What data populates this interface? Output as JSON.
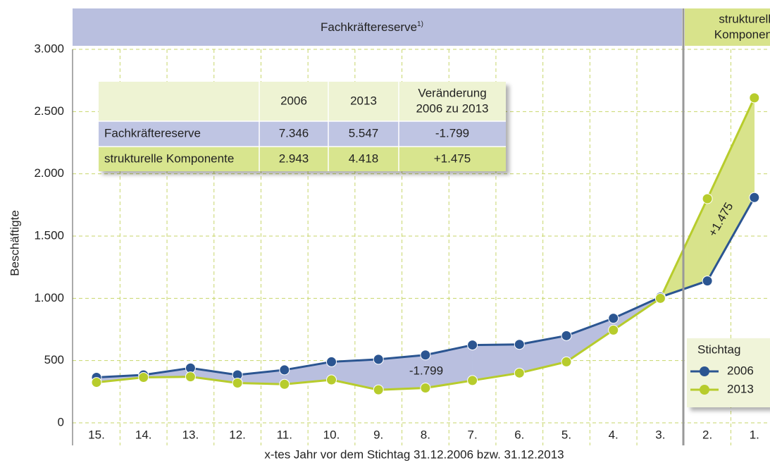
{
  "chart_data": {
    "type": "line",
    "header": {
      "left": "Fachkräftereserve",
      "left_note": "1)",
      "right": [
        "strukturelle",
        "Komponente"
      ]
    },
    "categories": [
      "15.",
      "14.",
      "13.",
      "12.",
      "11.",
      "10.",
      "9.",
      "8.",
      "7.",
      "6.",
      "5.",
      "4.",
      "3.",
      "2.",
      "1."
    ],
    "series": [
      {
        "name": "2006",
        "color": "#2b5591",
        "fill": "#b9bfdf",
        "values": [
          365,
          385,
          440,
          385,
          425,
          490,
          510,
          545,
          625,
          630,
          700,
          840,
          1010,
          1140,
          1810
        ]
      },
      {
        "name": "2013",
        "color": "#b7cc2c",
        "fill": "#d8e38b",
        "values": [
          325,
          365,
          370,
          320,
          310,
          345,
          265,
          280,
          340,
          400,
          490,
          745,
          1000,
          1800,
          2610
        ]
      }
    ],
    "ylim": [
      0,
      3000
    ],
    "yticks": [
      0,
      500,
      {
        "value": 1000,
        "label": "1.000"
      },
      {
        "value": 1500,
        "label": "1.500"
      },
      {
        "value": 2000,
        "label": "2.000"
      },
      {
        "value": 2500,
        "label": "2.500"
      },
      {
        "value": 3000,
        "label": "3.000"
      }
    ],
    "ylabel": "Beschäftigte",
    "xlabel": "x-tes Jahr vor dem Stichtag 31.12.2006 bzw. 31.12.2013",
    "grid": true,
    "legend": {
      "title": "Stichtag",
      "position": "lower right"
    },
    "annotations": [
      "-1.799",
      "+1.475"
    ],
    "table": {
      "columns": [
        "2006",
        "2013",
        [
          "Veränderung",
          "2006 zu 2013"
        ]
      ],
      "rows": [
        [
          "Fachkräftereserve",
          "7.346",
          "5.547",
          "-1.799"
        ],
        [
          "strukturelle Komponente",
          "2.943",
          "4.418",
          "+1.475"
        ]
      ]
    }
  }
}
